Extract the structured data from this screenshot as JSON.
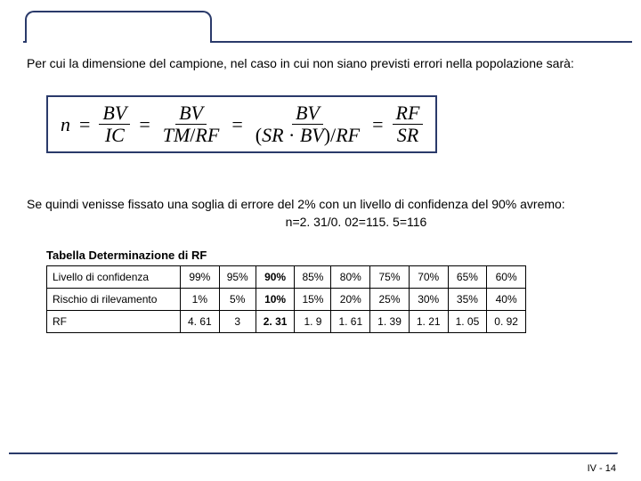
{
  "intro_text": "Per cui la dimensione del campione, nel caso in cui non siano previsti errori nella popolazione sarà:",
  "formula": {
    "lhs": "n",
    "f1_num": "BV",
    "f1_den": "IC",
    "f2_num": "BV",
    "f2_den_a": "TM",
    "f2_den_b": "RF",
    "f3_num": "BV",
    "f3_den_a": "SR",
    "f3_den_b": "BV",
    "f3_den_c": "RF",
    "f4_num": "RF",
    "f4_den": "SR"
  },
  "mid_text": "Se quindi venisse fissato una soglia di errore del 2% con un livello di confidenza del 90% avremo:",
  "calc_text": "n=2. 31/0. 02=115. 5=116",
  "table_title": "Tabella Determinazione di RF",
  "table": {
    "row_labels": [
      "Livello di confidenza",
      "Rischio di rilevamento",
      "RF"
    ],
    "cols": [
      {
        "conf": "99%",
        "risk": "1%",
        "rf": "4. 61"
      },
      {
        "conf": "95%",
        "risk": "5%",
        "rf": "3"
      },
      {
        "conf": "90%",
        "risk": "10%",
        "rf": "2. 31",
        "highlight": true
      },
      {
        "conf": "85%",
        "risk": "15%",
        "rf": "1. 9"
      },
      {
        "conf": "80%",
        "risk": "20%",
        "rf": "1. 61"
      },
      {
        "conf": "75%",
        "risk": "25%",
        "rf": "1. 39"
      },
      {
        "conf": "70%",
        "risk": "30%",
        "rf": "1. 21"
      },
      {
        "conf": "65%",
        "risk": "35%",
        "rf": "1. 05"
      },
      {
        "conf": "60%",
        "risk": "40%",
        "rf": "0. 92"
      }
    ]
  },
  "page_number": "IV -  14",
  "colors": {
    "frame": "#2a3a6a",
    "bg": "#ffffff",
    "text": "#000000"
  }
}
